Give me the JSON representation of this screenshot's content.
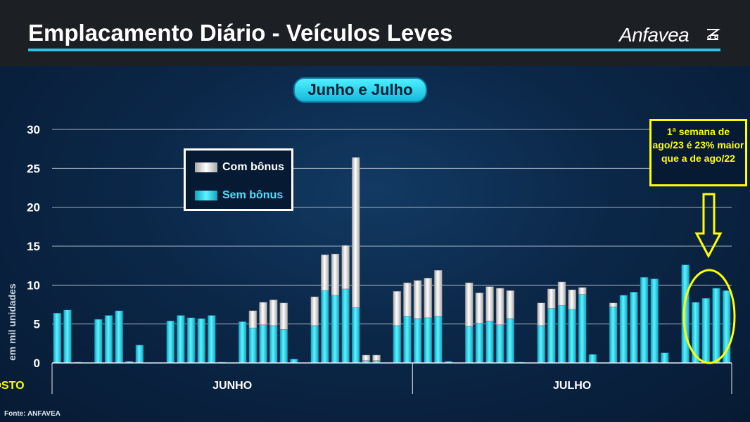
{
  "header": {
    "title": "Emplacamento Diário - Veículos Leves",
    "logo_text": "Anfavea"
  },
  "subtitle": "Junho e Julho",
  "source": "Fonte: ANFAVEA",
  "annotation": "1ª semana de ago/23 é 23% maior que a de ago/22",
  "colors": {
    "sem_bonus": "#22d3e8",
    "com_bonus": "#d9d9d9",
    "accent_line": "#2ec4e8",
    "annotation": "#ffff00"
  },
  "chart_data": {
    "type": "bar",
    "stacked": true,
    "ylabel": "em mil unidades",
    "ylim": [
      0,
      30
    ],
    "yticks": [
      0,
      5,
      10,
      15,
      20,
      25,
      30
    ],
    "grid": true,
    "legend_position": "top-left",
    "legend": [
      "Com bônus",
      "Sem bônus"
    ],
    "series": [
      {
        "name": "Sem bônus",
        "values": [
          6.4,
          6.8,
          0.1,
          null,
          5.6,
          6.1,
          6.7,
          0.2,
          2.3,
          0.0,
          null,
          5.4,
          6.1,
          5.8,
          5.7,
          6.1,
          0.1,
          null,
          5.3,
          4.5,
          4.9,
          4.8,
          4.3,
          0.5,
          null,
          4.8,
          9.3,
          8.7,
          9.5,
          7.1,
          0.3,
          0.3,
          null,
          4.8,
          6.0,
          5.7,
          5.8,
          6.0,
          0.2,
          null,
          4.7,
          5.1,
          5.4,
          4.9,
          5.7,
          0.1,
          null,
          4.8,
          7.0,
          7.4,
          6.9,
          8.8,
          1.1,
          null,
          7.2,
          8.7,
          9.1,
          11.0,
          10.8,
          1.3,
          null,
          12.6,
          7.8,
          8.3,
          9.6,
          9.3
        ]
      },
      {
        "name": "Com bônus",
        "values": [
          0,
          0,
          0,
          null,
          0,
          0,
          0,
          0,
          0,
          0,
          null,
          0,
          0,
          0,
          0,
          0,
          0,
          null,
          0,
          2.2,
          2.9,
          3.3,
          3.4,
          0,
          null,
          3.7,
          4.6,
          5.3,
          5.6,
          19.3,
          0.7,
          0.7,
          null,
          4.4,
          4.3,
          4.9,
          5.1,
          5.9,
          0,
          null,
          5.6,
          3.9,
          4.4,
          4.7,
          3.6,
          0,
          null,
          2.9,
          2.5,
          3.0,
          2.5,
          0.9,
          0,
          null,
          0.5,
          0,
          0,
          0,
          0,
          0,
          null,
          0,
          0,
          0,
          0,
          0
        ]
      }
    ],
    "groups": [
      {
        "label": "JUNHO"
      },
      {
        "label": "JULHO"
      },
      {
        "label": "AGOSTO"
      }
    ],
    "group_bar_counts": [
      30,
      29,
      4
    ],
    "labels": {
      "legend_com": "Com bônus",
      "legend_sem": "Sem bônus"
    }
  }
}
